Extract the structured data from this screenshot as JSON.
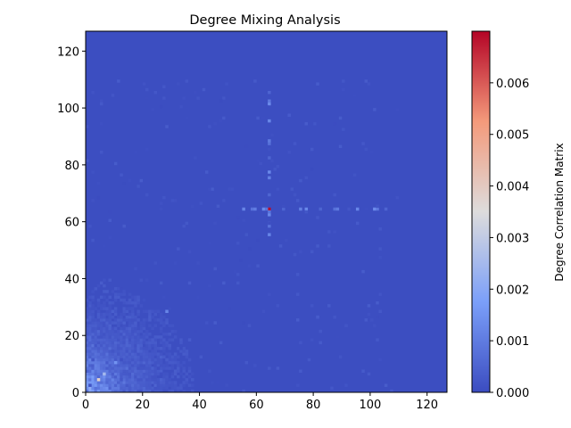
{
  "chart_data": {
    "type": "heatmap",
    "title": "Degree Mixing Analysis",
    "xlabel": "",
    "ylabel": "",
    "xlim": [
      0,
      127
    ],
    "ylim": [
      0,
      127
    ],
    "x_ticks": [
      "0",
      "20",
      "40",
      "60",
      "80",
      "100",
      "120"
    ],
    "y_ticks": [
      "0",
      "20",
      "40",
      "60",
      "80",
      "100",
      "120"
    ],
    "colormap": "coolwarm",
    "colorbar": {
      "label": "Degree Correlation Matrix",
      "min": 0.0,
      "max": 0.007,
      "ticks": [
        "0.000",
        "0.001",
        "0.002",
        "0.003",
        "0.004",
        "0.005",
        "0.006"
      ]
    },
    "hotspots": [
      {
        "x": 64,
        "y": 64,
        "value": 0.0069,
        "note": "peak"
      },
      {
        "x": 4,
        "y": 4,
        "value": 0.0038
      },
      {
        "x": 6,
        "y": 6,
        "value": 0.0025
      },
      {
        "x": 10,
        "y": 10,
        "value": 0.0015
      },
      {
        "x": 28,
        "y": 28,
        "value": 0.0012
      }
    ],
    "grid": false
  }
}
